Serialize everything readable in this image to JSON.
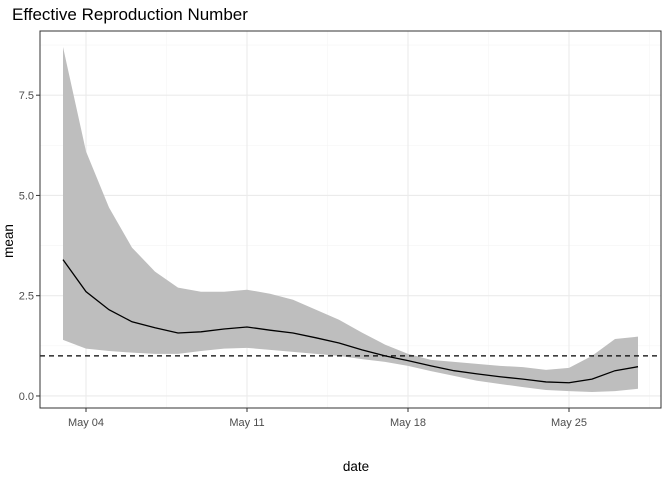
{
  "chart_data": {
    "type": "line",
    "title": "Effective Reproduction Number",
    "xlabel": "date",
    "ylabel": "mean",
    "x_tick_labels": [
      "May 04",
      "May 11",
      "May 18",
      "May 25"
    ],
    "x_ticks": [
      "2020-05-04",
      "2020-05-11",
      "2020-05-18",
      "2020-05-25"
    ],
    "y_ticks": [
      0.0,
      2.5,
      5.0,
      7.5
    ],
    "y_tick_labels": [
      "0.0",
      "2.5",
      "5.0",
      "7.5"
    ],
    "xlim": [
      "2020-05-02",
      "2020-05-29"
    ],
    "ylim": [
      -0.3,
      9.1
    ],
    "grid": true,
    "reference_line": {
      "y": 1,
      "style": "dashed"
    },
    "series": [
      {
        "type": "ribbon",
        "x": [
          "2020-05-03",
          "2020-05-04",
          "2020-05-05",
          "2020-05-06",
          "2020-05-07",
          "2020-05-08",
          "2020-05-09",
          "2020-05-10",
          "2020-05-11",
          "2020-05-12",
          "2020-05-13",
          "2020-05-14",
          "2020-05-15",
          "2020-05-16",
          "2020-05-17",
          "2020-05-18",
          "2020-05-19",
          "2020-05-20",
          "2020-05-21",
          "2020-05-22",
          "2020-05-23",
          "2020-05-24",
          "2020-05-25",
          "2020-05-26",
          "2020-05-27",
          "2020-05-28"
        ],
        "lower": [
          1.4,
          1.18,
          1.12,
          1.08,
          1.05,
          1.05,
          1.12,
          1.18,
          1.2,
          1.15,
          1.1,
          1.05,
          1.0,
          0.92,
          0.85,
          0.75,
          0.62,
          0.5,
          0.38,
          0.3,
          0.22,
          0.15,
          0.12,
          0.1,
          0.12,
          0.18
        ],
        "upper": [
          8.7,
          6.1,
          4.7,
          3.7,
          3.1,
          2.7,
          2.6,
          2.6,
          2.65,
          2.55,
          2.4,
          2.15,
          1.9,
          1.58,
          1.28,
          1.05,
          0.9,
          0.85,
          0.8,
          0.75,
          0.72,
          0.65,
          0.7,
          1.0,
          1.42,
          1.48
        ]
      },
      {
        "type": "line",
        "x": [
          "2020-05-03",
          "2020-05-04",
          "2020-05-05",
          "2020-05-06",
          "2020-05-07",
          "2020-05-08",
          "2020-05-09",
          "2020-05-10",
          "2020-05-11",
          "2020-05-12",
          "2020-05-13",
          "2020-05-14",
          "2020-05-15",
          "2020-05-16",
          "2020-05-17",
          "2020-05-18",
          "2020-05-19",
          "2020-05-20",
          "2020-05-21",
          "2020-05-22",
          "2020-05-23",
          "2020-05-24",
          "2020-05-25",
          "2020-05-26",
          "2020-05-27",
          "2020-05-28"
        ],
        "values": [
          3.4,
          2.6,
          2.15,
          1.85,
          1.7,
          1.57,
          1.6,
          1.67,
          1.72,
          1.64,
          1.57,
          1.45,
          1.32,
          1.15,
          1.0,
          0.88,
          0.75,
          0.63,
          0.55,
          0.48,
          0.42,
          0.35,
          0.33,
          0.42,
          0.63,
          0.73
        ]
      }
    ],
    "colors": {
      "ribbon": "#bebebe",
      "line": "#000000",
      "grid_major": "#ebebeb",
      "grid_minor": "#f5f5f5",
      "panel_border": "#333333",
      "tick_text": "#4d4d4d"
    }
  }
}
